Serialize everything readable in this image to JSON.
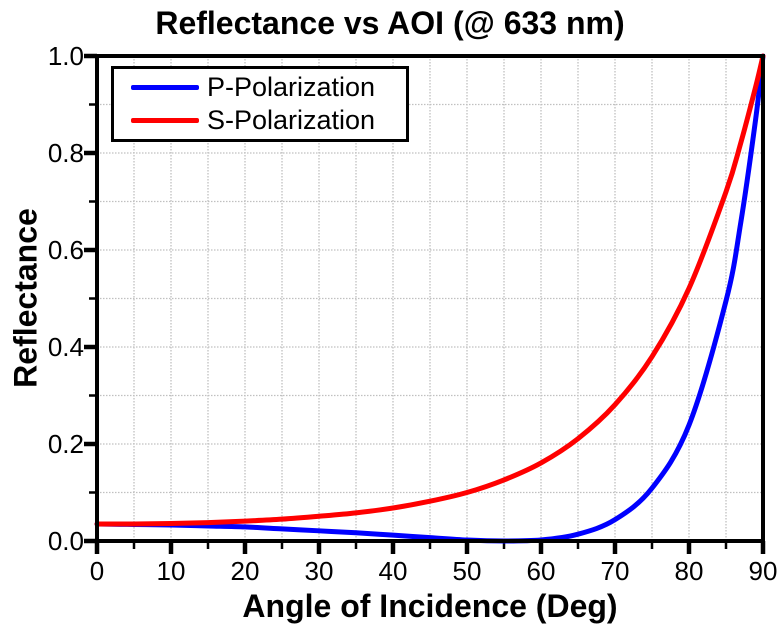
{
  "chart_data": {
    "type": "line",
    "title": "Reflectance vs AOI (@ 633 nm)",
    "xlabel": "Angle of Incidence (Deg)",
    "ylabel": "Reflectance",
    "xlim": [
      0,
      90
    ],
    "ylim": [
      0,
      1
    ],
    "x_major_ticks": [
      0,
      10,
      20,
      30,
      40,
      50,
      60,
      70,
      80,
      90
    ],
    "x_tick_labels": [
      "0",
      "10",
      "20",
      "30",
      "40",
      "50",
      "60",
      "70",
      "80",
      "90"
    ],
    "y_major_ticks": [
      0,
      0.2,
      0.4,
      0.6,
      0.8,
      1.0
    ],
    "y_tick_labels": [
      "0.0",
      "0.2",
      "0.4",
      "0.6",
      "0.8",
      "1.0"
    ],
    "x_minor_ticks": [
      5,
      15,
      25,
      35,
      45,
      55,
      65,
      75,
      85
    ],
    "y_minor_ticks": [
      0.1,
      0.3,
      0.5,
      0.7,
      0.9
    ],
    "grid": {
      "show": true,
      "x_step": 5,
      "y_step": 0.1,
      "color": "#c0c0c0"
    },
    "axis_color": "#000000",
    "background_color": "#ffffff",
    "legend": {
      "position": "top-left",
      "entries": [
        {
          "label": "P-Polarization",
          "color": "#0000ff"
        },
        {
          "label": "S-Polarization",
          "color": "#ff0000"
        }
      ]
    },
    "series": [
      {
        "name": "P-Polarization",
        "color": "#0000ff",
        "x": [
          0,
          5,
          10,
          15,
          20,
          25,
          30,
          35,
          40,
          45,
          50,
          55,
          60,
          65,
          70,
          75,
          80,
          85,
          87,
          89,
          90
        ],
        "y": [
          0.035,
          0.034,
          0.033,
          0.031,
          0.029,
          0.025,
          0.021,
          0.017,
          0.012,
          0.007,
          0.002,
          0.0,
          0.002,
          0.014,
          0.044,
          0.109,
          0.239,
          0.495,
          0.657,
          0.869,
          1.0
        ]
      },
      {
        "name": "S-Polarization",
        "color": "#ff0000",
        "x": [
          0,
          5,
          10,
          15,
          20,
          25,
          30,
          35,
          40,
          45,
          50,
          55,
          60,
          65,
          70,
          75,
          80,
          85,
          87,
          89,
          90
        ],
        "y": [
          0.035,
          0.035,
          0.036,
          0.038,
          0.041,
          0.045,
          0.051,
          0.058,
          0.068,
          0.082,
          0.1,
          0.126,
          0.161,
          0.211,
          0.281,
          0.38,
          0.521,
          0.72,
          0.821,
          0.936,
          1.0
        ]
      }
    ],
    "annotations": {
      "brewster_angle_deg": 56,
      "wavelength_nm": 633
    }
  }
}
